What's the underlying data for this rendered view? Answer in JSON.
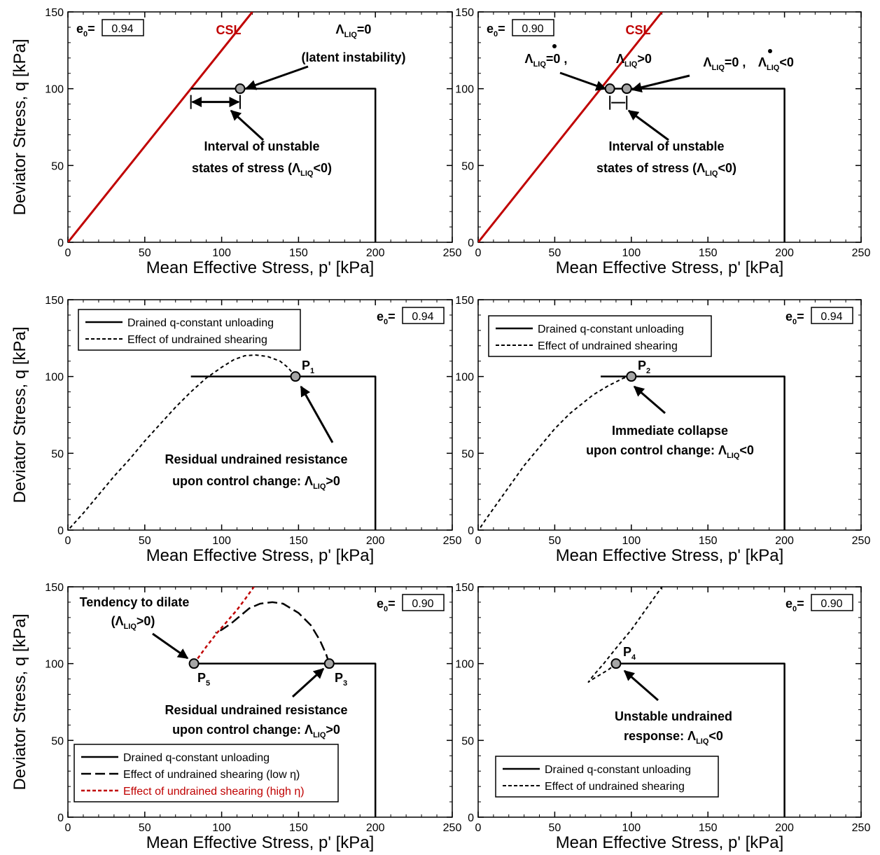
{
  "colors": {
    "csl": "#c00000",
    "marker_fill": "#a6a6a6",
    "high_eta": "#c00000",
    "axis": "#000000"
  },
  "chart_data": [
    {
      "type": "line",
      "xlabel": "Mean Effective Stress, p' [kPa]",
      "ylabel": "Deviator Stress, q [kPa]",
      "xlim": [
        0,
        250
      ],
      "ylim": [
        0,
        150
      ],
      "xticks": [
        "0",
        "50",
        "100",
        "150",
        "200",
        "250"
      ],
      "yticks": [
        "0",
        "50",
        "100",
        "150"
      ],
      "e0": {
        "label_main": "e",
        "label_sub": "0",
        "label_eq": "=",
        "value": "0.94"
      },
      "csl": {
        "label": "CSL",
        "x": [
          0,
          120
        ],
        "y": [
          0,
          150
        ]
      },
      "series": [
        {
          "style": "solid",
          "x": [
            200,
            200,
            80
          ],
          "y": [
            0,
            100,
            100
          ]
        }
      ],
      "points": [
        {
          "x": 112,
          "y": 100
        }
      ],
      "interval": [
        80,
        112
      ],
      "annotations": {
        "latent_1": "Λ",
        "latent_1_sub": "LIQ",
        "latent_1_tail": "=0",
        "latent_2": "(latent instability)",
        "interval_1": "Interval of unstable",
        "interval_2": "states of stress (Λ",
        "interval_2_sub": "LIQ",
        "interval_2_tail": "<0)"
      }
    },
    {
      "type": "line",
      "xlabel": "Mean Effective Stress, p' [kPa]",
      "ylabel": "",
      "xlim": [
        0,
        250
      ],
      "ylim": [
        0,
        150
      ],
      "xticks": [
        "0",
        "50",
        "100",
        "150",
        "200",
        "250"
      ],
      "yticks": [
        "0",
        "50",
        "100",
        "150"
      ],
      "e0": {
        "label_main": "e",
        "label_sub": "0",
        "label_eq": "=",
        "value": "0.90"
      },
      "csl": {
        "label": "CSL",
        "x": [
          0,
          120
        ],
        "y": [
          0,
          150
        ]
      },
      "series": [
        {
          "style": "solid",
          "x": [
            200,
            200,
            80
          ],
          "y": [
            0,
            100,
            100
          ]
        }
      ],
      "points": [
        {
          "x": 86,
          "y": 100
        },
        {
          "x": 97,
          "y": 100
        }
      ],
      "interval": [
        86,
        97
      ],
      "annotations": {
        "left_1": "Λ",
        "left_1_sub": "LIQ",
        "left_1_tail": "=0 ,",
        "left_2": "Λ",
        "left_2_sub": "LIQ",
        "left_2_tail": ">0",
        "right_1": "Λ",
        "right_1_sub": "LIQ",
        "right_1_tail": "=0 ,",
        "right_2": "Λ",
        "right_2_sub": "LIQ",
        "right_2_tail": "<0",
        "interval_1": "Interval of unstable",
        "interval_2": "states of stress (Λ",
        "interval_2_sub": "LIQ",
        "interval_2_tail": "<0)"
      }
    },
    {
      "type": "line",
      "xlabel": "Mean Effective Stress, p' [kPa]",
      "ylabel": "Deviator Stress, q [kPa]",
      "xlim": [
        0,
        250
      ],
      "ylim": [
        0,
        150
      ],
      "xticks": [
        "0",
        "50",
        "100",
        "150",
        "200",
        "250"
      ],
      "yticks": [
        "0",
        "50",
        "100",
        "150"
      ],
      "e0": {
        "label_main": "e",
        "label_sub": "0",
        "label_eq": "=",
        "value": "0.94"
      },
      "legend": {
        "placement": "top-left",
        "entries": [
          {
            "name": "Drained q-constant unloading",
            "style": "solid"
          },
          {
            "name": "Effect of undrained shearing",
            "style": "dash"
          }
        ]
      },
      "series": [
        {
          "name": "Drained q-constant unloading",
          "style": "solid",
          "x": [
            200,
            200,
            80
          ],
          "y": [
            0,
            100,
            100
          ]
        },
        {
          "name": "Effect of undrained shearing",
          "style": "dash",
          "x": [
            148,
            143,
            138,
            130,
            122,
            115,
            108,
            100,
            90,
            80,
            70,
            60,
            50,
            40,
            30,
            20,
            10,
            1
          ],
          "y": [
            100,
            106,
            110,
            113,
            114,
            113.5,
            111,
            106,
            99,
            90,
            80,
            69,
            58,
            46,
            35,
            23,
            11,
            1
          ]
        }
      ],
      "points": [
        {
          "label": "P",
          "label_sub": "1",
          "x": 148,
          "y": 100
        }
      ],
      "annotations": {
        "note_1": "Residual undrained resistance",
        "note_2": "upon control change: Λ",
        "note_2_sub": "LIQ",
        "note_2_tail": ">0"
      }
    },
    {
      "type": "line",
      "xlabel": "Mean Effective Stress, p' [kPa]",
      "ylabel": "",
      "xlim": [
        0,
        250
      ],
      "ylim": [
        0,
        150
      ],
      "xticks": [
        "0",
        "50",
        "100",
        "150",
        "200",
        "250"
      ],
      "yticks": [
        "0",
        "50",
        "100",
        "150"
      ],
      "e0": {
        "label_main": "e",
        "label_sub": "0",
        "label_eq": "=",
        "value": "0.94"
      },
      "legend": {
        "placement": "top-left",
        "entries": [
          {
            "name": "Drained q-constant unloading",
            "style": "solid"
          },
          {
            "name": "Effect of undrained shearing",
            "style": "dash"
          }
        ]
      },
      "series": [
        {
          "name": "Drained q-constant unloading",
          "style": "solid",
          "x": [
            200,
            200,
            80
          ],
          "y": [
            0,
            100,
            100
          ]
        },
        {
          "name": "Effect of undrained shearing",
          "style": "dash",
          "x": [
            100,
            95,
            90,
            85,
            80,
            75,
            70,
            65,
            60,
            55,
            50,
            45,
            40,
            35,
            30,
            25,
            20,
            15,
            10,
            5,
            1
          ],
          "y": [
            100,
            99,
            96.5,
            94,
            91,
            88,
            84,
            80,
            76,
            71,
            66,
            60,
            54,
            48,
            42,
            35,
            28,
            21,
            14,
            7,
            1
          ]
        }
      ],
      "points": [
        {
          "label": "P",
          "label_sub": "2",
          "x": 100,
          "y": 100
        }
      ],
      "annotations": {
        "note_1": "Immediate collapse",
        "note_2": "upon control change: Λ",
        "note_2_sub": "LIQ",
        "note_2_tail": "<0"
      }
    },
    {
      "type": "line",
      "xlabel": "Mean Effective Stress, p' [kPa]",
      "ylabel": "Deviator Stress, q [kPa]",
      "xlim": [
        0,
        250
      ],
      "ylim": [
        0,
        150
      ],
      "xticks": [
        "0",
        "50",
        "100",
        "150",
        "200",
        "250"
      ],
      "yticks": [
        "0",
        "50",
        "100",
        "150"
      ],
      "e0": {
        "label_main": "e",
        "label_sub": "0",
        "label_eq": "=",
        "value": "0.90"
      },
      "legend": {
        "placement": "bottom-left",
        "entries": [
          {
            "name": "Drained q-constant unloading",
            "style": "solid",
            "text_color": "#000000"
          },
          {
            "name": "Effect of undrained shearing (low η)",
            "style": "longdash",
            "text_color": "#000000"
          },
          {
            "name": "Effect of undrained shearing (high η)",
            "style": "reddash",
            "text_color": "#c00000"
          }
        ]
      },
      "series": [
        {
          "name": "Drained q-constant unloading",
          "style": "solid",
          "x": [
            200,
            200,
            82
          ],
          "y": [
            0,
            100,
            100
          ]
        },
        {
          "name": "Effect of undrained shearing (low η)",
          "style": "longdash",
          "x": [
            170,
            168,
            164,
            158,
            150,
            140,
            133,
            125,
            118,
            112,
            106,
            100,
            96
          ],
          "y": [
            100,
            106,
            115,
            125,
            133,
            139,
            140,
            139,
            136,
            131,
            126,
            122,
            120
          ]
        },
        {
          "name": "Effect of undrained shearing (high η)",
          "style": "reddash",
          "x": [
            82,
            90,
            97,
            104,
            110,
            116,
            121
          ],
          "y": [
            100,
            111,
            120,
            128,
            135,
            143,
            150
          ]
        }
      ],
      "points": [
        {
          "label": "P",
          "label_sub": "5",
          "x": 82,
          "y": 100
        },
        {
          "label": "P",
          "label_sub": "3",
          "x": 170,
          "y": 100
        }
      ],
      "annotations": {
        "dilate_1": "Tendency to dilate",
        "dilate_2": "(Λ",
        "dilate_2_sub": "LIQ",
        "dilate_2_tail": ">0)",
        "note_1": "Residual undrained resistance",
        "note_2": "upon control change: Λ",
        "note_2_sub": "LIQ",
        "note_2_tail": ">0"
      }
    },
    {
      "type": "line",
      "xlabel": "Mean Effective Stress, p' [kPa]",
      "ylabel": "",
      "xlim": [
        0,
        250
      ],
      "ylim": [
        0,
        150
      ],
      "xticks": [
        "0",
        "50",
        "100",
        "150",
        "200",
        "250"
      ],
      "yticks": [
        "0",
        "50",
        "100",
        "150"
      ],
      "e0": {
        "label_main": "e",
        "label_sub": "0",
        "label_eq": "=",
        "value": "0.90"
      },
      "legend": {
        "placement": "bottom-left",
        "entries": [
          {
            "name": "Drained q-constant unloading",
            "style": "solid"
          },
          {
            "name": "Effect of undrained shearing",
            "style": "dash"
          }
        ]
      },
      "series": [
        {
          "name": "Drained q-constant unloading",
          "style": "solid",
          "x": [
            200,
            200,
            90
          ],
          "y": [
            0,
            100,
            100
          ]
        },
        {
          "name": "Effect of undrained shearing",
          "style": "dash",
          "x": [
            90,
            85,
            80,
            75,
            72,
            75,
            82,
            90,
            100,
            110,
            120
          ],
          "y": [
            100,
            96,
            93,
            90,
            88,
            92,
            100,
            110,
            122,
            136,
            150
          ]
        }
      ],
      "points": [
        {
          "label": "P",
          "label_sub": "4",
          "x": 90,
          "y": 100
        }
      ],
      "annotations": {
        "note_1": "Unstable undrained",
        "note_2": "response: Λ",
        "note_2_sub": "LIQ",
        "note_2_tail": "<0"
      }
    }
  ]
}
